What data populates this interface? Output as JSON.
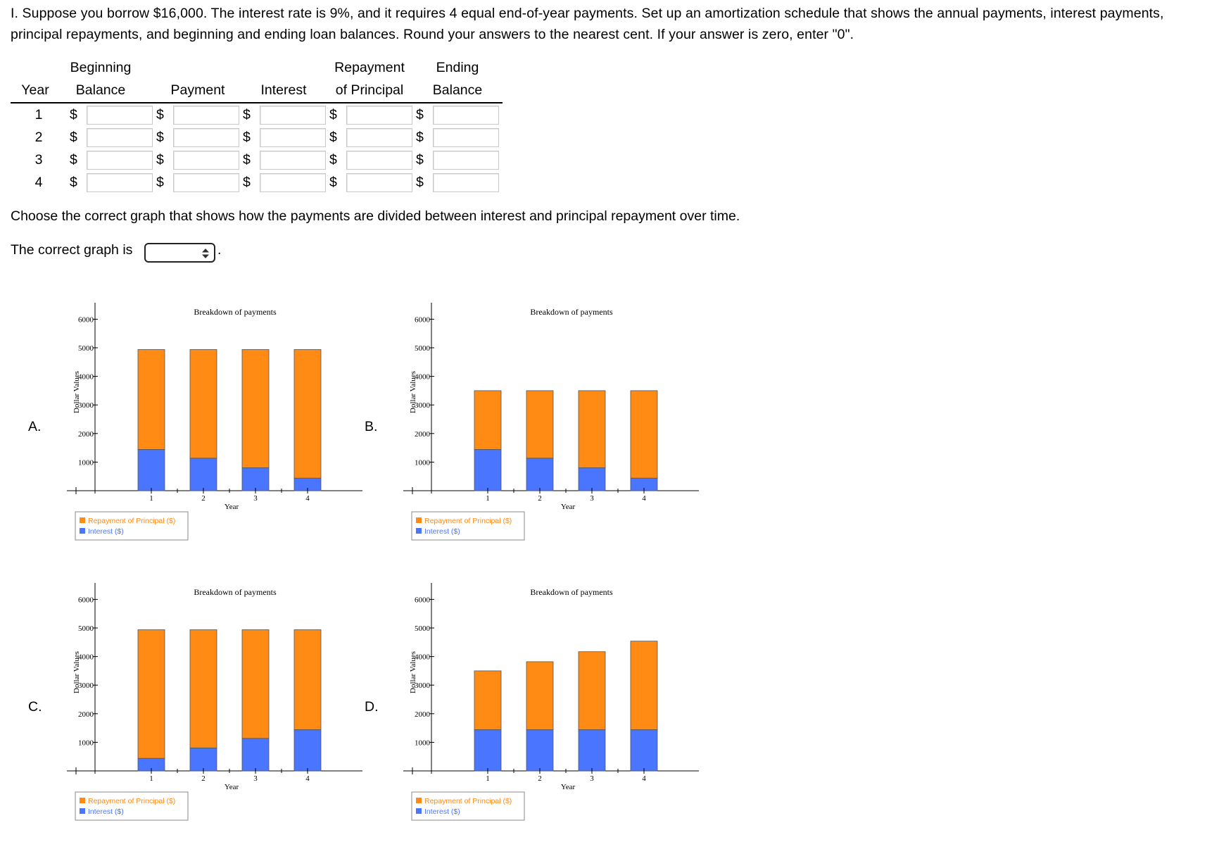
{
  "question": {
    "text": "I. Suppose you borrow $16,000. The interest rate is 9%, and it requires 4 equal end-of-year payments. Set up an amortization schedule that shows the annual payments, interest payments, principal repayments, and beginning and ending loan balances. Round your answers to the nearest cent. If your answer is zero, enter \"0\"."
  },
  "table": {
    "headers": {
      "year": "Year",
      "beginning_top": "Beginning",
      "beginning_bottom": "Balance",
      "payment": "Payment",
      "interest": "Interest",
      "repayment_top": "Repayment",
      "repayment_bottom": "of Principal",
      "ending_top": "Ending",
      "ending_bottom": "Balance"
    },
    "currency": "$",
    "rows": [
      {
        "year": "1",
        "beginning": "",
        "payment": "",
        "interest": "",
        "principal": "",
        "ending": ""
      },
      {
        "year": "2",
        "beginning": "",
        "payment": "",
        "interest": "",
        "principal": "",
        "ending": ""
      },
      {
        "year": "3",
        "beginning": "",
        "payment": "",
        "interest": "",
        "principal": "",
        "ending": ""
      },
      {
        "year": "4",
        "beginning": "",
        "payment": "",
        "interest": "",
        "principal": "",
        "ending": ""
      }
    ]
  },
  "graph_prompt": "Choose the correct graph that shows how the payments are divided between interest and principal repayment over time.",
  "graph_answer": {
    "label": "The correct graph is",
    "selected": "",
    "period": "."
  },
  "colors": {
    "principal": "#ff8a14",
    "interest": "#4a76ff",
    "axis": "#000000"
  },
  "chart_data": [
    {
      "option": "A.",
      "type": "bar",
      "stacked": true,
      "title": "Breakdown of payments",
      "xlabel": "Year",
      "ylabel": "Dollar Values",
      "categories": [
        "1",
        "2",
        "3",
        "4"
      ],
      "yticks": [
        1000,
        2000,
        3000,
        4000,
        5000,
        6000
      ],
      "ylim": [
        0,
        6500
      ],
      "series": [
        {
          "name": "Interest ($)",
          "values": [
            1440,
            1137,
            802,
            437
          ]
        },
        {
          "name": "Repayment of Principal ($)",
          "values": [
            3499,
            3802,
            4137,
            4502
          ]
        }
      ],
      "legend_position": "bottom-left"
    },
    {
      "option": "B.",
      "type": "bar",
      "stacked": true,
      "title": "Breakdown of payments",
      "xlabel": "Year",
      "ylabel": "Dollar Values",
      "categories": [
        "1",
        "2",
        "3",
        "4"
      ],
      "yticks": [
        1000,
        2000,
        3000,
        4000,
        5000,
        6000
      ],
      "ylim": [
        0,
        6500
      ],
      "series": [
        {
          "name": "Interest ($)",
          "values": [
            1440,
            1137,
            802,
            437
          ]
        },
        {
          "name": "Repayment of Principal ($)",
          "values": [
            2060,
            2363,
            2698,
            3063
          ]
        }
      ],
      "legend_position": "bottom-left"
    },
    {
      "option": "C.",
      "type": "bar",
      "stacked": true,
      "title": "Breakdown of payments",
      "xlabel": "Year",
      "ylabel": "Dollar Values",
      "categories": [
        "1",
        "2",
        "3",
        "4"
      ],
      "yticks": [
        1000,
        2000,
        3000,
        4000,
        5000,
        6000
      ],
      "ylim": [
        0,
        6500
      ],
      "series": [
        {
          "name": "Interest ($)",
          "values": [
            437,
            802,
            1137,
            1440
          ]
        },
        {
          "name": "Repayment of Principal ($)",
          "values": [
            4502,
            4137,
            3802,
            3499
          ]
        }
      ],
      "legend_position": "bottom-left"
    },
    {
      "option": "D.",
      "type": "bar",
      "stacked": true,
      "title": "Breakdown of payments",
      "xlabel": "Year",
      "ylabel": "Dollar Values",
      "categories": [
        "1",
        "2",
        "3",
        "4"
      ],
      "yticks": [
        1000,
        2000,
        3000,
        4000,
        5000,
        6000
      ],
      "ylim": [
        0,
        6500
      ],
      "series": [
        {
          "name": "Interest ($)",
          "values": [
            1440,
            1440,
            1440,
            1440
          ]
        },
        {
          "name": "Repayment of Principal ($)",
          "values": [
            2060,
            2380,
            2730,
            3100
          ]
        }
      ],
      "legend_position": "bottom-left"
    }
  ]
}
